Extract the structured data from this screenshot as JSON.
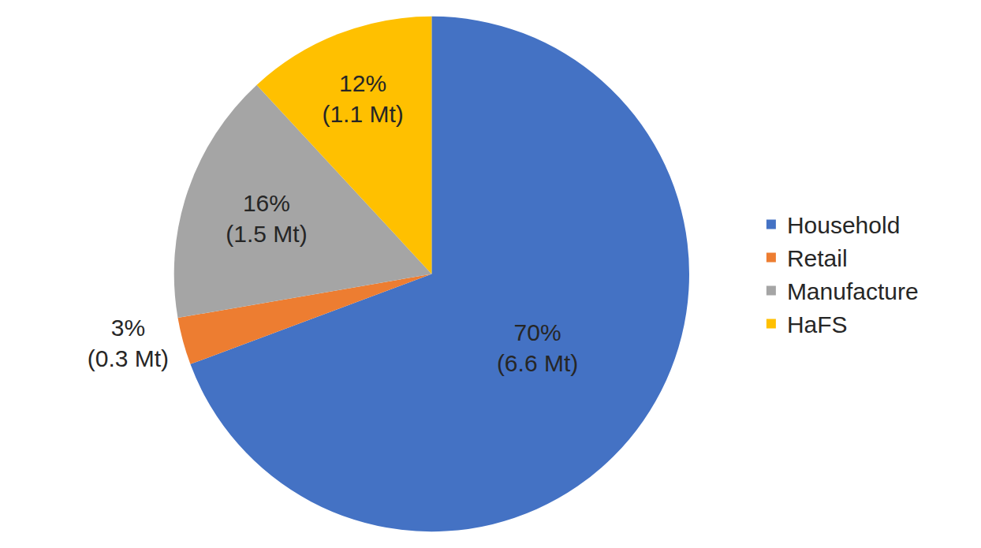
{
  "chart_data": {
    "type": "pie",
    "categories": [
      "Household",
      "Retail",
      "Manufacture",
      "HaFS"
    ],
    "values": [
      70,
      3,
      16,
      12
    ],
    "value_labels": [
      "70%\n(6.6 Mt)",
      "3%\n(0.3 Mt)",
      "16%\n(1.5 Mt)",
      "12%\n(1.1 Mt)"
    ],
    "colors": [
      "#4472C4",
      "#ED7D31",
      "#A5A5A5",
      "#FFC000"
    ],
    "data_labels": true,
    "legend": "right"
  }
}
